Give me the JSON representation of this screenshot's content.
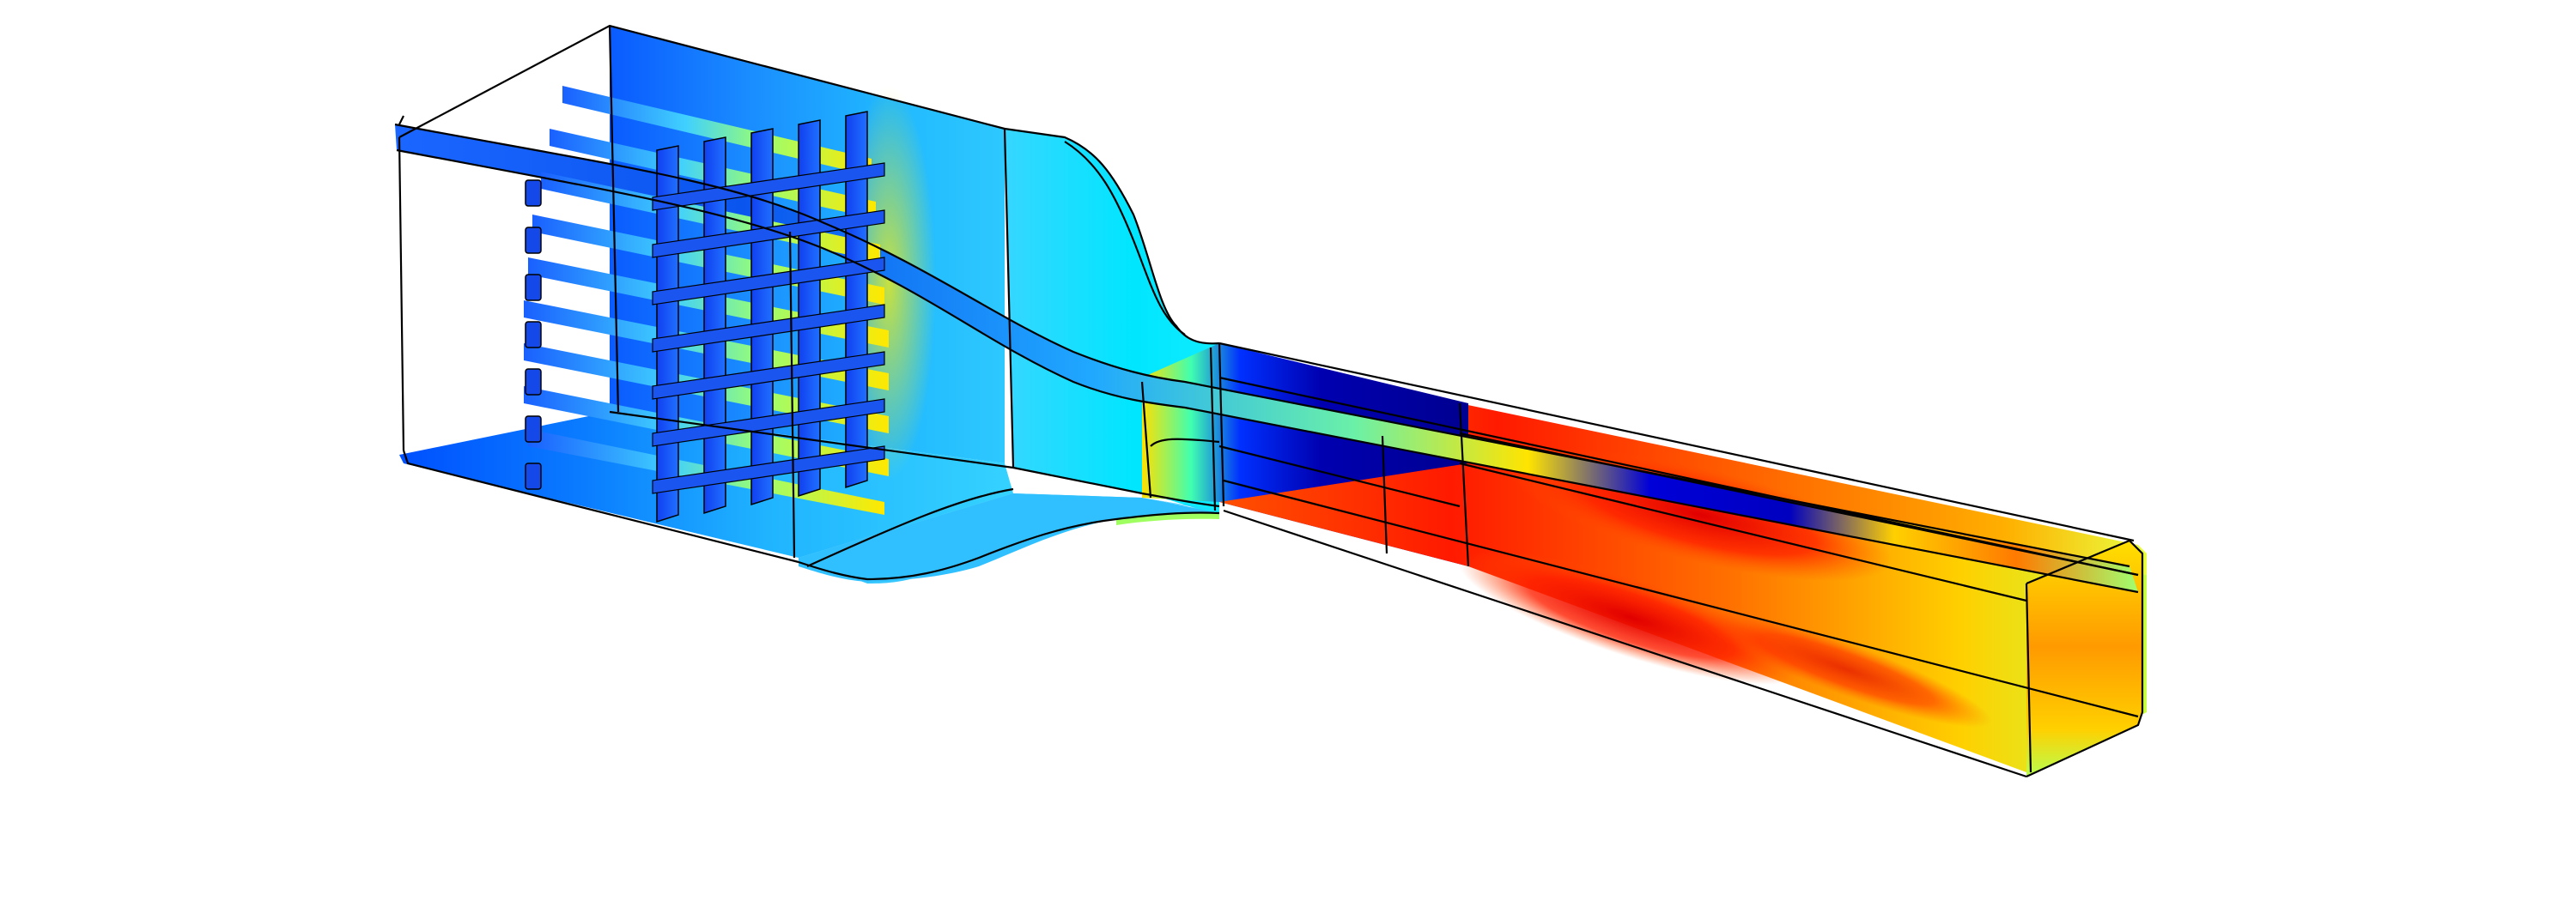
{
  "view": {
    "background": "#ffffff",
    "edge_color": "#000000",
    "colormap": [
      "#00007f",
      "#0000ff",
      "#0080ff",
      "#00ffff",
      "#80ff80",
      "#ffff00",
      "#ff8000",
      "#ff0000"
    ]
  }
}
